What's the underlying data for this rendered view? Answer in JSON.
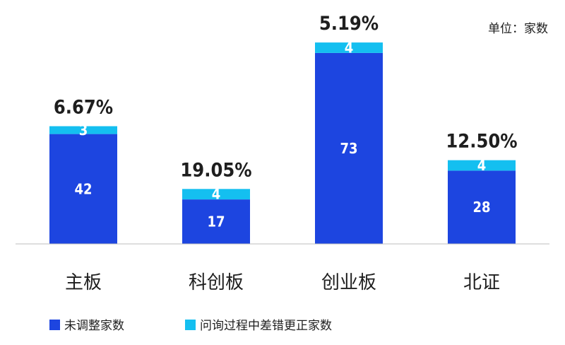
{
  "chart_data": {
    "type": "bar",
    "stacked": true,
    "unit_label": "单位：家数",
    "categories": [
      "主板",
      "科创板",
      "创业板",
      "北证"
    ],
    "series": [
      {
        "name": "未调整家数",
        "values": [
          42,
          17,
          73,
          28
        ],
        "color": "#1d45e0"
      },
      {
        "name": "问询过程中差错更正家数",
        "values": [
          3,
          4,
          4,
          4
        ],
        "color": "#14bff0"
      }
    ],
    "annotations": [
      "6.67%",
      "19.05%",
      "5.19%",
      "12.50%"
    ],
    "ylim": [
      0,
      80
    ],
    "grid": false,
    "legend_position": "bottom-left"
  }
}
